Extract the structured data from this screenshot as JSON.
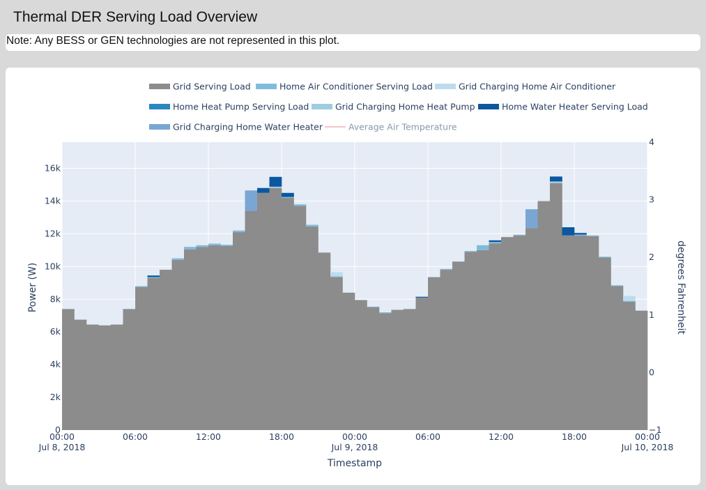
{
  "page": {
    "title": "Thermal DER Serving Load Overview",
    "note": "Note: Any BESS or GEN technologies are not represented in this plot."
  },
  "chart_data": {
    "type": "area",
    "xlabel": "Timestamp",
    "ylabel": "Power (W)",
    "y2label": "degrees Fahrenheit",
    "ylim": [
      0,
      17600
    ],
    "y2lim": [
      -1,
      4
    ],
    "yticks": [
      0,
      2000,
      4000,
      6000,
      8000,
      10000,
      12000,
      14000,
      16000
    ],
    "ytick_labels": [
      "0",
      "2k",
      "4k",
      "6k",
      "8k",
      "10k",
      "12k",
      "14k",
      "16k"
    ],
    "y2ticks": [
      -1,
      0,
      1,
      2,
      3,
      4
    ],
    "y2tick_labels": [
      "−1",
      "0",
      "1",
      "2",
      "3",
      "4"
    ],
    "xticks": [
      {
        "hour": 0,
        "line1": "00:00",
        "line2": "Jul 8, 2018"
      },
      {
        "hour": 6,
        "line1": "06:00",
        "line2": ""
      },
      {
        "hour": 12,
        "line1": "12:00",
        "line2": ""
      },
      {
        "hour": 18,
        "line1": "18:00",
        "line2": ""
      },
      {
        "hour": 24,
        "line1": "00:00",
        "line2": "Jul 9, 2018"
      },
      {
        "hour": 30,
        "line1": "06:00",
        "line2": ""
      },
      {
        "hour": 36,
        "line1": "12:00",
        "line2": ""
      },
      {
        "hour": 42,
        "line1": "18:00",
        "line2": ""
      },
      {
        "hour": 48,
        "line1": "00:00",
        "line2": "Jul 10, 2018"
      }
    ],
    "x_hours": [
      0,
      1,
      2,
      3,
      4,
      5,
      6,
      7,
      8,
      9,
      10,
      11,
      12,
      13,
      14,
      15,
      16,
      17,
      18,
      19,
      20,
      21,
      22,
      23,
      24,
      25,
      26,
      27,
      28,
      29,
      30,
      31,
      32,
      33,
      34,
      35,
      36,
      37,
      38,
      39,
      40,
      41,
      42,
      43,
      44,
      45,
      46,
      47
    ],
    "legend_position": "top",
    "series": [
      {
        "name": "Grid Serving Load",
        "color": "#8c8c8c",
        "values": [
          7400,
          6750,
          6450,
          6400,
          6450,
          7400,
          8750,
          9300,
          9800,
          10400,
          11050,
          11200,
          11300,
          11250,
          12100,
          13400,
          14500,
          14800,
          14200,
          13700,
          12450,
          10850,
          9350,
          8400,
          7950,
          7500,
          7150,
          7350,
          7400,
          8100,
          9350,
          9800,
          10300,
          10900,
          11000,
          11400,
          11800,
          11900,
          12350,
          14000,
          15100,
          11900,
          11900,
          11850,
          10550,
          8800,
          7850,
          7300
        ]
      },
      {
        "name": "Home Air Conditioner Serving Load",
        "color": "#7fbcdc",
        "values": [
          0,
          0,
          0,
          0,
          0,
          0,
          50,
          50,
          0,
          100,
          150,
          100,
          100,
          80,
          100,
          0,
          0,
          0,
          50,
          100,
          100,
          0,
          50,
          0,
          0,
          50,
          50,
          0,
          0,
          0,
          0,
          50,
          0,
          50,
          300,
          100,
          0,
          50,
          0,
          0,
          0,
          0,
          50,
          50,
          50,
          50,
          50,
          0
        ]
      },
      {
        "name": "Grid Charging Home Air Conditioner",
        "color": "#bcdcee",
        "values": [
          0,
          0,
          0,
          0,
          0,
          0,
          0,
          0,
          0,
          0,
          0,
          0,
          0,
          0,
          0,
          0,
          0,
          0,
          0,
          0,
          0,
          0,
          250,
          0,
          0,
          0,
          0,
          0,
          0,
          0,
          0,
          0,
          0,
          0,
          0,
          0,
          0,
          0,
          0,
          0,
          0,
          0,
          0,
          0,
          0,
          0,
          300,
          0
        ]
      },
      {
        "name": "Home Heat Pump Serving Load",
        "color": "#2b86c4",
        "values": [
          0,
          0,
          0,
          0,
          0,
          0,
          0,
          0,
          0,
          0,
          0,
          0,
          0,
          0,
          0,
          0,
          0,
          0,
          0,
          0,
          0,
          0,
          0,
          0,
          0,
          0,
          0,
          0,
          0,
          0,
          0,
          0,
          0,
          0,
          0,
          0,
          0,
          0,
          0,
          0,
          0,
          0,
          0,
          0,
          0,
          0,
          0,
          0
        ]
      },
      {
        "name": "Grid Charging Home Heat Pump",
        "color": "#9ecde0",
        "values": [
          0,
          0,
          0,
          0,
          0,
          0,
          0,
          0,
          0,
          0,
          0,
          0,
          0,
          0,
          0,
          0,
          0,
          80,
          0,
          0,
          0,
          0,
          0,
          0,
          0,
          0,
          0,
          0,
          0,
          0,
          0,
          0,
          0,
          0,
          0,
          0,
          0,
          0,
          0,
          0,
          100,
          0,
          0,
          0,
          0,
          0,
          0,
          0
        ]
      },
      {
        "name": "Home Water Heater Serving Load",
        "color": "#0b57a0",
        "values": [
          0,
          0,
          0,
          0,
          0,
          0,
          0,
          100,
          0,
          0,
          0,
          0,
          0,
          0,
          0,
          0,
          300,
          600,
          250,
          0,
          0,
          0,
          0,
          0,
          0,
          0,
          0,
          0,
          0,
          50,
          0,
          0,
          0,
          0,
          0,
          100,
          0,
          0,
          0,
          0,
          300,
          500,
          100,
          0,
          0,
          0,
          0,
          0
        ]
      },
      {
        "name": "Grid Charging Home Water Heater",
        "color": "#7aa6d4",
        "values": [
          0,
          0,
          0,
          0,
          0,
          0,
          0,
          0,
          0,
          0,
          0,
          0,
          0,
          0,
          0,
          1250,
          0,
          0,
          0,
          0,
          0,
          0,
          0,
          0,
          0,
          0,
          0,
          0,
          0,
          0,
          0,
          0,
          0,
          0,
          0,
          0,
          0,
          0,
          1150,
          0,
          0,
          0,
          0,
          0,
          0,
          0,
          0,
          0
        ]
      },
      {
        "name": "Average Air Temperature",
        "color": "#f2a0aa",
        "line_only": true,
        "values": []
      }
    ]
  }
}
